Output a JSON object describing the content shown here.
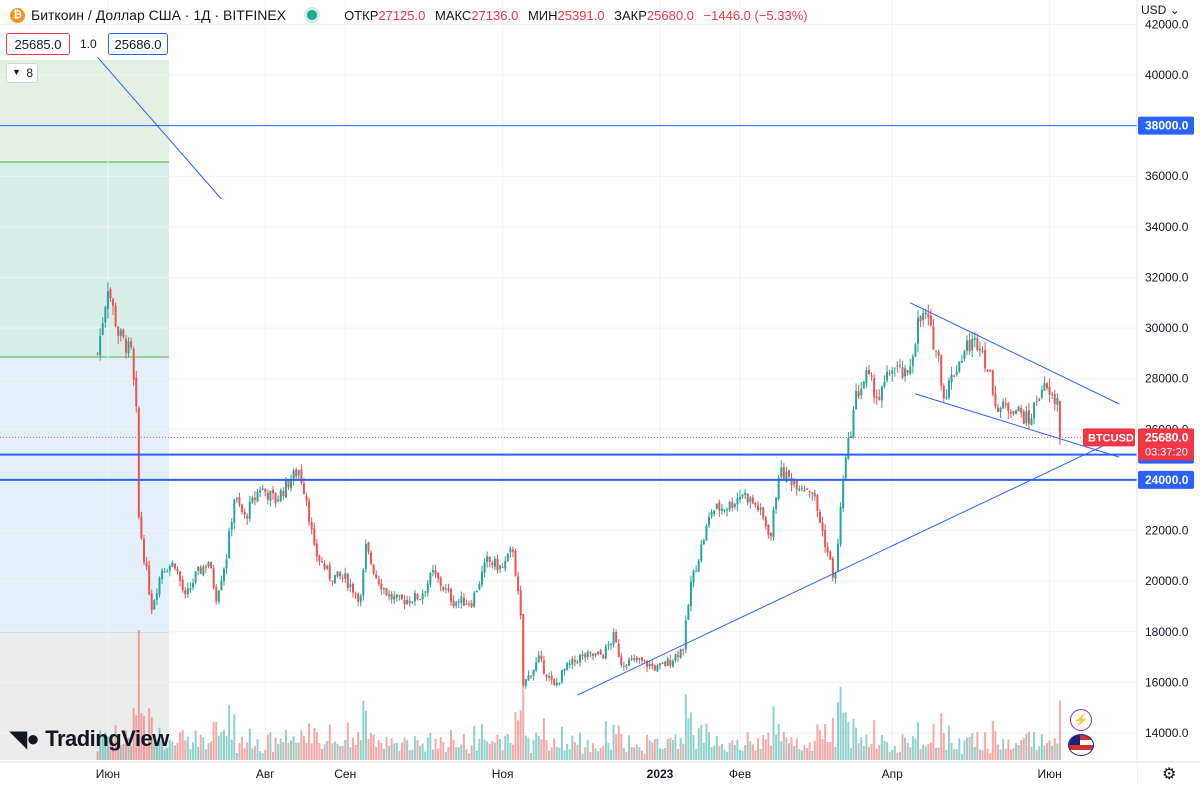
{
  "header": {
    "coin_icon": "bitcoin-icon",
    "symbol": "Биткоин / Доллар США · 1Д · BITFINEX",
    "open_label": "ОТКР",
    "open_value": "27125.0",
    "high_label": "МАКС",
    "high_value": "27136.0",
    "low_label": "МИН",
    "low_value": "25391.0",
    "close_label": "ЗАКР",
    "close_value": "25680.0",
    "change_value": "−1446.0 (−5.33%)"
  },
  "trade_panel": {
    "sell_price": "25685.0",
    "spread": "1.0",
    "buy_price": "25686.0",
    "lots": "8"
  },
  "currency": "USD",
  "branding": "TradingView",
  "colors": {
    "up": "#26a69a",
    "down": "#ef5350",
    "drawing": "#2962ff",
    "price_label": "#f23645"
  },
  "chart_data": {
    "type": "candlestick",
    "symbol_label": "BTCUSD",
    "last_price": "25680.0",
    "countdown": "03:37:20",
    "ylim": [
      13000,
      42000
    ],
    "y_ticks": [
      "14000.0",
      "16000.0",
      "18000.0",
      "20000.0",
      "22000.0",
      "24000.0",
      "26000.0",
      "28000.0",
      "30000.0",
      "32000.0",
      "34000.0",
      "36000.0",
      "38000.0",
      "40000.0",
      "42000.0"
    ],
    "x_labels": [
      "Июн",
      "Авг",
      "Сен",
      "Ноя",
      "2023",
      "Фев",
      "Апр",
      "Июн"
    ],
    "levels": [
      {
        "price": 38000,
        "label": "38000.0"
      },
      {
        "price": 25000,
        "label": "25000.0"
      },
      {
        "price": 24000,
        "label": "24000.0"
      }
    ],
    "close_anchors": [
      [
        "2022-05-28",
        29000
      ],
      [
        "2022-06-01",
        31700
      ],
      [
        "2022-06-05",
        29800
      ],
      [
        "2022-06-10",
        29000
      ],
      [
        "2022-06-12",
        26600
      ],
      [
        "2022-06-13",
        22500
      ],
      [
        "2022-06-15",
        21000
      ],
      [
        "2022-06-18",
        19000
      ],
      [
        "2022-06-22",
        20500
      ],
      [
        "2022-06-27",
        20700
      ],
      [
        "2022-07-01",
        19300
      ],
      [
        "2022-07-05",
        20200
      ],
      [
        "2022-07-10",
        20800
      ],
      [
        "2022-07-13",
        19400
      ],
      [
        "2022-07-17",
        21000
      ],
      [
        "2022-07-20",
        23300
      ],
      [
        "2022-07-24",
        22500
      ],
      [
        "2022-07-30",
        23700
      ],
      [
        "2022-08-05",
        23200
      ],
      [
        "2022-08-10",
        23900
      ],
      [
        "2022-08-14",
        24400
      ],
      [
        "2022-08-17",
        23300
      ],
      [
        "2022-08-20",
        21200
      ],
      [
        "2022-08-26",
        20200
      ],
      [
        "2022-09-01",
        20100
      ],
      [
        "2022-09-07",
        19300
      ],
      [
        "2022-09-09",
        21300
      ],
      [
        "2022-09-13",
        20200
      ],
      [
        "2022-09-18",
        19400
      ],
      [
        "2022-09-22",
        19200
      ],
      [
        "2022-09-30",
        19400
      ],
      [
        "2022-10-05",
        20300
      ],
      [
        "2022-10-13",
        19200
      ],
      [
        "2022-10-20",
        19200
      ],
      [
        "2022-10-26",
        20800
      ],
      [
        "2022-11-01",
        20500
      ],
      [
        "2022-11-05",
        21300
      ],
      [
        "2022-11-08",
        18500
      ],
      [
        "2022-11-09",
        15900
      ],
      [
        "2022-11-15",
        16900
      ],
      [
        "2022-11-21",
        15800
      ],
      [
        "2022-11-25",
        16500
      ],
      [
        "2022-12-01",
        17000
      ],
      [
        "2022-12-10",
        17100
      ],
      [
        "2022-12-14",
        17800
      ],
      [
        "2022-12-17",
        16800
      ],
      [
        "2022-12-24",
        16850
      ],
      [
        "2022-12-31",
        16550
      ],
      [
        "2023-01-05",
        16850
      ],
      [
        "2023-01-10",
        17400
      ],
      [
        "2023-01-13",
        19900
      ],
      [
        "2023-01-21",
        22800
      ],
      [
        "2023-01-28",
        23000
      ],
      [
        "2023-02-02",
        23500
      ],
      [
        "2023-02-08",
        22900
      ],
      [
        "2023-02-13",
        21800
      ],
      [
        "2023-02-16",
        24300
      ],
      [
        "2023-02-23",
        23900
      ],
      [
        "2023-03-01",
        23600
      ],
      [
        "2023-03-09",
        20300
      ],
      [
        "2023-03-10",
        20200
      ],
      [
        "2023-03-13",
        24100
      ],
      [
        "2023-03-18",
        27300
      ],
      [
        "2023-03-22",
        28100
      ],
      [
        "2023-03-27",
        27200
      ],
      [
        "2023-04-01",
        28500
      ],
      [
        "2023-04-07",
        28000
      ],
      [
        "2023-04-11",
        30200
      ],
      [
        "2023-04-14",
        30500
      ],
      [
        "2023-04-19",
        28800
      ],
      [
        "2023-04-21",
        27300
      ],
      [
        "2023-04-26",
        28500
      ],
      [
        "2023-04-30",
        29300
      ],
      [
        "2023-05-05",
        29500
      ],
      [
        "2023-05-10",
        27600
      ],
      [
        "2023-05-12",
        26800
      ],
      [
        "2023-05-18",
        26900
      ],
      [
        "2023-05-24",
        26300
      ],
      [
        "2023-05-29",
        27700
      ],
      [
        "2023-06-02",
        27200
      ],
      [
        "2023-06-04",
        27125
      ],
      [
        "2023-06-05",
        25680
      ]
    ]
  }
}
